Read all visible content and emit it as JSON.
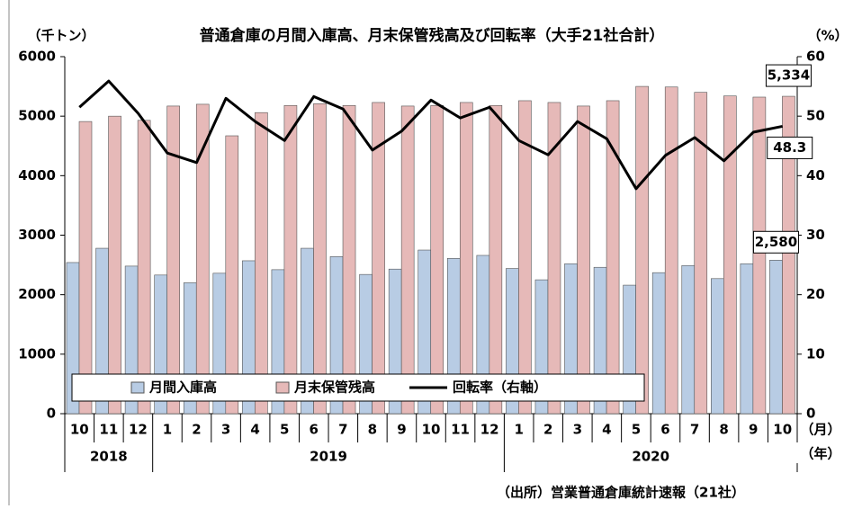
{
  "chart_data": {
    "type": "bar",
    "title": "普通倉庫の月間入庫高、月末保管残高及び回転率（大手21社合計）",
    "y_label": "（千トン）",
    "y2_label": "（%）",
    "x_label": "（月）",
    "x2_label": "（年）",
    "source": "（出所）営業普通倉庫統計速報（21社）",
    "categories": [
      "10",
      "11",
      "12",
      "1",
      "2",
      "3",
      "4",
      "5",
      "6",
      "7",
      "8",
      "9",
      "10",
      "11",
      "12",
      "1",
      "2",
      "3",
      "4",
      "5",
      "6",
      "7",
      "8",
      "9",
      "10"
    ],
    "years": [
      "2018",
      null,
      null,
      "2019",
      null,
      null,
      null,
      null,
      null,
      null,
      null,
      null,
      null,
      null,
      null,
      "2020",
      null,
      null,
      null,
      null,
      null,
      null,
      null,
      null,
      null
    ],
    "series": [
      {
        "name": "月間入庫高",
        "color": "#b8cce4",
        "values": [
          2540,
          2780,
          2480,
          2330,
          2200,
          2360,
          2570,
          2420,
          2780,
          2640,
          2340,
          2430,
          2750,
          2610,
          2660,
          2440,
          2250,
          2520,
          2460,
          2160,
          2370,
          2490,
          2270,
          2520,
          2580
        ],
        "value_labels": [
          null,
          null,
          null,
          null,
          null,
          null,
          null,
          null,
          null,
          null,
          null,
          null,
          null,
          null,
          null,
          null,
          null,
          null,
          null,
          null,
          null,
          null,
          null,
          null,
          "2,580"
        ]
      },
      {
        "name": "月末保管残高",
        "color": "#e6b9b8",
        "values": [
          4910,
          5000,
          4930,
          5170,
          5200,
          4670,
          5060,
          5180,
          5210,
          5180,
          5230,
          5170,
          5180,
          5230,
          5180,
          5260,
          5230,
          5170,
          5260,
          5500,
          5490,
          5400,
          5340,
          5320,
          5334
        ],
        "value_labels": [
          null,
          null,
          null,
          null,
          null,
          null,
          null,
          null,
          null,
          null,
          null,
          null,
          null,
          null,
          null,
          null,
          null,
          null,
          null,
          null,
          null,
          null,
          null,
          null,
          "5,334"
        ]
      },
      {
        "name": "回転率（右軸）",
        "type": "line",
        "axis": "y2",
        "color": "#000000",
        "values": [
          51.5,
          55.9,
          50.5,
          43.8,
          42.2,
          53.0,
          49.1,
          45.9,
          53.3,
          51.2,
          44.3,
          47.5,
          52.7,
          49.7,
          51.5,
          45.9,
          43.5,
          49.1,
          46.2,
          37.8,
          43.4,
          46.4,
          42.5,
          47.3,
          48.3
        ],
        "value_labels": [
          null,
          null,
          null,
          null,
          null,
          null,
          null,
          null,
          null,
          null,
          null,
          null,
          null,
          null,
          null,
          null,
          null,
          null,
          null,
          null,
          null,
          null,
          null,
          null,
          "48.3"
        ]
      }
    ],
    "ylim": [
      0,
      6000
    ],
    "yticks": [
      0,
      1000,
      2000,
      3000,
      4000,
      5000,
      6000
    ],
    "y2lim": [
      0,
      60
    ],
    "y2ticks": [
      0,
      10,
      20,
      30,
      40,
      50,
      60
    ],
    "grid": false,
    "legend": "lower left"
  }
}
